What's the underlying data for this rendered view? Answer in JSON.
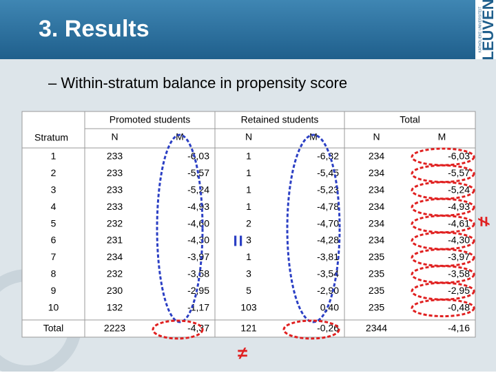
{
  "header": {
    "title": "3. Results",
    "logo": "LEUVEN",
    "logo_sub": "KATHOLIEKE UNIVERSITEIT"
  },
  "bullet": "– Within-stratum balance in propensity score",
  "table": {
    "group_headers": [
      "Promoted students",
      "Retained students",
      "Total"
    ],
    "columns": [
      "Stratum",
      "N",
      "M",
      "N",
      "M",
      "N",
      "M"
    ],
    "rows": [
      [
        "1",
        "233",
        "-6,03",
        "1",
        "-6,32",
        "234",
        "-6,03"
      ],
      [
        "2",
        "233",
        "-5,57",
        "1",
        "-5,45",
        "234",
        "-5,57"
      ],
      [
        "3",
        "233",
        "-5,24",
        "1",
        "-5,23",
        "234",
        "-5,24"
      ],
      [
        "4",
        "233",
        "-4,93",
        "1",
        "-4,78",
        "234",
        "-4,93"
      ],
      [
        "5",
        "232",
        "-4,60",
        "2",
        "-4,70",
        "234",
        "-4,61"
      ],
      [
        "6",
        "231",
        "-4,30",
        "3",
        "-4,28",
        "234",
        "-4,30"
      ],
      [
        "7",
        "234",
        "-3,97",
        "1",
        "-3,81",
        "235",
        "-3,97"
      ],
      [
        "8",
        "232",
        "-3,58",
        "3",
        "-3,54",
        "235",
        "-3,58"
      ],
      [
        "9",
        "230",
        "-2,95",
        "5",
        "-2,90",
        "235",
        "-2,95"
      ],
      [
        "10",
        "132",
        "-1,17",
        "103",
        "0,40",
        "235",
        "-0,48"
      ]
    ],
    "total": [
      "Total",
      "2223",
      "-4,37",
      "121",
      "-0,26",
      "2344",
      "-4,16"
    ]
  },
  "annotations": {
    "equal": "=",
    "not_equal_bottom": "≠",
    "not_equal_right": "≠"
  }
}
